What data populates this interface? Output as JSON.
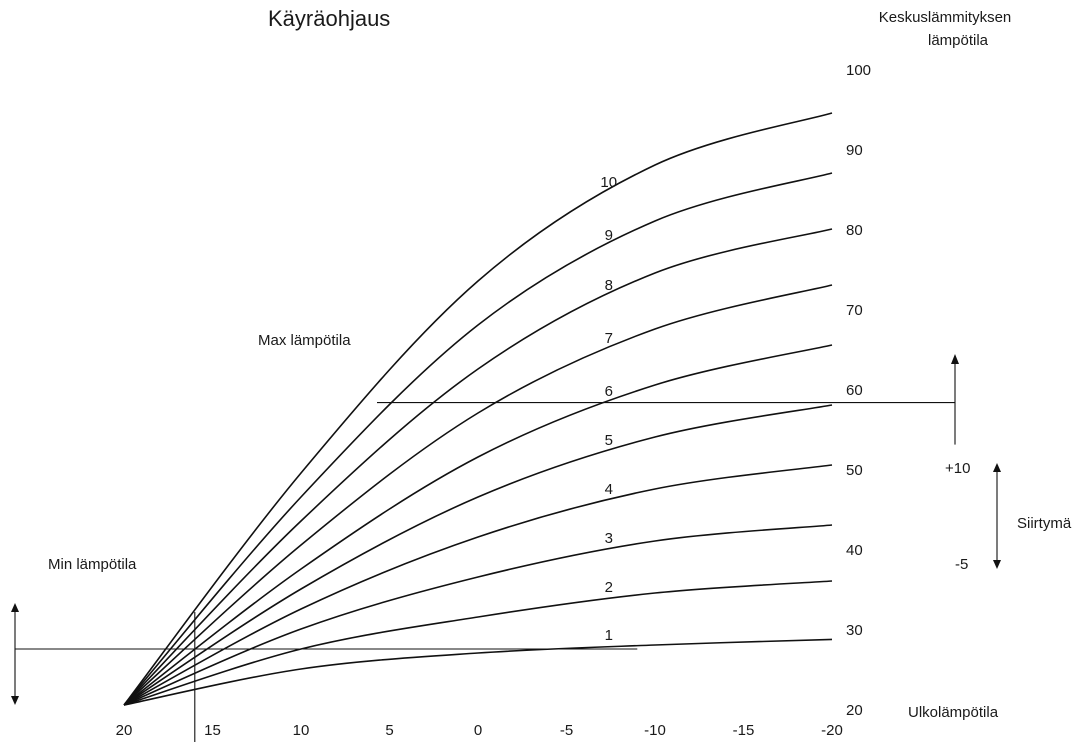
{
  "chart_data": {
    "type": "line",
    "title": "Käyräohjaus",
    "xlabel": "Ulkolämpötila",
    "ylabel": "Keskuslämmityksen lämpötila",
    "ylabel_lines": [
      "Keskuslämmityksen",
      "lämpötila"
    ],
    "xlim": [
      20,
      -20
    ],
    "ylim": [
      20,
      100
    ],
    "x_ticks": [
      "20",
      "15",
      "10",
      "5",
      "0",
      "-5",
      "-10",
      "-15",
      "-20"
    ],
    "y_ticks": [
      "20",
      "30",
      "40",
      "50",
      "60",
      "70",
      "80",
      "90",
      "100"
    ],
    "origin": {
      "x": 20,
      "y": 20
    },
    "curve_labels": [
      "1",
      "2",
      "3",
      "4",
      "5",
      "6",
      "7",
      "8",
      "9",
      "10"
    ],
    "series": [
      {
        "name": "1",
        "x": [
          20,
          10,
          0,
          -10,
          -20
        ],
        "y": [
          20,
          24.5,
          26.5,
          27.5,
          28.2
        ]
      },
      {
        "name": "2",
        "x": [
          20,
          10,
          0,
          -10,
          -20
        ],
        "y": [
          20,
          27,
          31,
          34,
          35.5
        ]
      },
      {
        "name": "3",
        "x": [
          20,
          10,
          0,
          -10,
          -20
        ],
        "y": [
          20,
          29.5,
          36,
          40.5,
          42.5
        ]
      },
      {
        "name": "4",
        "x": [
          20,
          10,
          0,
          -10,
          -20
        ],
        "y": [
          20,
          32,
          41,
          47,
          50
        ]
      },
      {
        "name": "5",
        "x": [
          20,
          10,
          0,
          -10,
          -20
        ],
        "y": [
          20,
          34.5,
          46,
          53.5,
          57.5
        ]
      },
      {
        "name": "6",
        "x": [
          20,
          10,
          0,
          -10,
          -20
        ],
        "y": [
          20,
          37,
          51,
          60,
          65
        ]
      },
      {
        "name": "7",
        "x": [
          20,
          10,
          0,
          -10,
          -20
        ],
        "y": [
          20,
          40,
          56.5,
          67,
          72.5
        ]
      },
      {
        "name": "8",
        "x": [
          20,
          10,
          0,
          -10,
          -20
        ],
        "y": [
          20,
          43,
          62,
          74,
          79.5
        ]
      },
      {
        "name": "9",
        "x": [
          20,
          10,
          0,
          -10,
          -20
        ],
        "y": [
          20,
          46,
          67.5,
          80.5,
          86.5
        ]
      },
      {
        "name": "10",
        "x": [
          20,
          10,
          0,
          -10,
          -20
        ],
        "y": [
          20,
          49,
          73,
          87.5,
          94
        ]
      }
    ],
    "annotations": {
      "max_label": "Max lämpötila",
      "max_value": 57.8,
      "min_label": "Min lämpötila",
      "min_value": 27,
      "min_x": 16,
      "shift_label": "Siirtymä",
      "shift_plus": "+10",
      "shift_minus": "-5"
    }
  }
}
